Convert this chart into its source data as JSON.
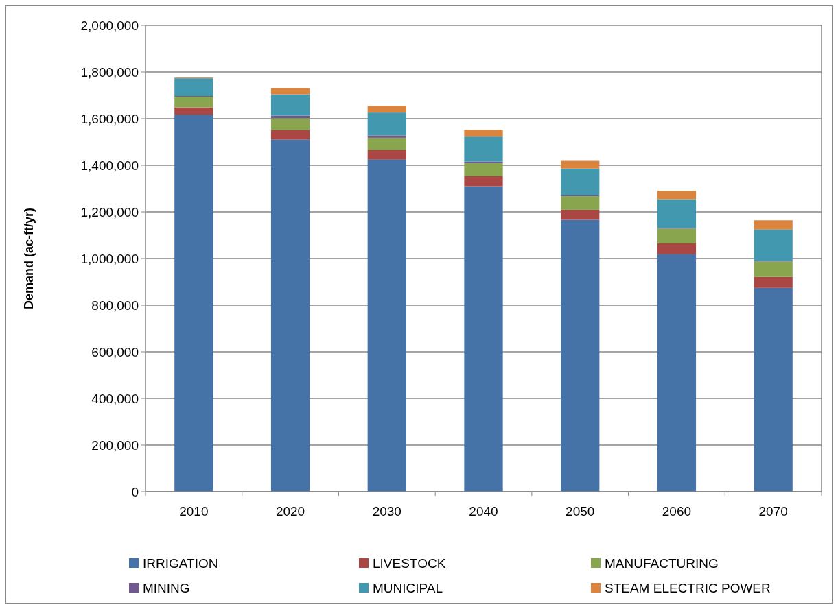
{
  "chart_data": {
    "type": "bar",
    "stacked": true,
    "ylabel": "Demand (ac-ft/yr)",
    "categories": [
      "2010",
      "2020",
      "2030",
      "2040",
      "2050",
      "2060",
      "2070"
    ],
    "series": [
      {
        "name": "IRRIGATION",
        "color": "#4572a7",
        "values": [
          1617000,
          1511000,
          1424000,
          1310000,
          1166000,
          1019000,
          874000
        ]
      },
      {
        "name": "LIVESTOCK",
        "color": "#aa4643",
        "values": [
          31000,
          40000,
          42000,
          44000,
          43000,
          46000,
          47000
        ]
      },
      {
        "name": "MANUFACTURING",
        "color": "#89a54e",
        "values": [
          46000,
          51000,
          52000,
          55000,
          58000,
          63000,
          66000
        ]
      },
      {
        "name": "MINING",
        "color": "#71588f",
        "values": [
          3000,
          11000,
          10000,
          7000,
          4000,
          3000,
          3000
        ]
      },
      {
        "name": "MUNICIPAL",
        "color": "#4198af",
        "values": [
          76000,
          91000,
          98000,
          107000,
          115000,
          123000,
          134000
        ]
      },
      {
        "name": "STEAM ELECTRIC POWER",
        "color": "#db843d",
        "values": [
          3000,
          27000,
          29000,
          29000,
          33000,
          36000,
          40000
        ]
      }
    ],
    "ylim": [
      0,
      2000000
    ],
    "yticks": [
      {
        "value": 0,
        "label": "0"
      },
      {
        "value": 200000,
        "label": "200,000"
      },
      {
        "value": 400000,
        "label": "400,000"
      },
      {
        "value": 600000,
        "label": "600,000"
      },
      {
        "value": 800000,
        "label": "800,000"
      },
      {
        "value": 1000000,
        "label": "1,000,000"
      },
      {
        "value": 1200000,
        "label": "1,200,000"
      },
      {
        "value": 1400000,
        "label": "1,400,000"
      },
      {
        "value": 1600000,
        "label": "1,600,000"
      },
      {
        "value": 1800000,
        "label": "1,800,000"
      },
      {
        "value": 2000000,
        "label": "2,000,000"
      }
    ],
    "grid": "y",
    "legend": "bottom"
  }
}
